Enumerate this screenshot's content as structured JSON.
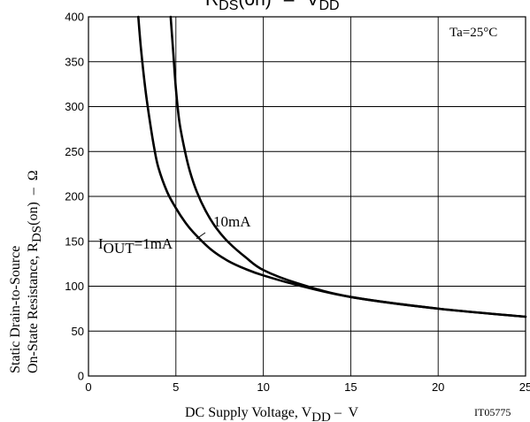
{
  "chart_data": {
    "type": "line",
    "title_main": "R",
    "title_main_sub": "DS",
    "title_main_after": "(on)",
    "title_sep": "–",
    "title_v": "V",
    "title_v_sub": "DD",
    "x_ticks": [
      "0",
      "5",
      "10",
      "15",
      "20",
      "25"
    ],
    "y_ticks": [
      "0",
      "50",
      "100",
      "150",
      "200",
      "250",
      "300",
      "350",
      "400"
    ],
    "xlim": [
      0,
      25
    ],
    "ylim": [
      0,
      400
    ],
    "grid": true,
    "xlabel": {
      "main": "DC Supply Voltage, V",
      "sub": "DD",
      "after": " –  V"
    },
    "ylabel_line1": "Static Drain-to-Source",
    "ylabel_line2": {
      "main": "On-State Resistance, R",
      "sub": "DS",
      "after": "(on)  –  Ω"
    },
    "condition": "Ta=25°C",
    "figure_code": "IT05775",
    "series": [
      {
        "name": "I_OUT=1mA",
        "label_main": "I",
        "label_sub": "OUT",
        "label_after": "=1mA",
        "x": [
          2.85,
          3.0,
          3.25,
          3.5,
          3.75,
          4.0,
          4.5,
          5.0,
          5.5,
          6.0,
          7.0,
          8.0,
          9.0,
          10.0,
          12.0,
          15.0,
          20.0,
          25.0
        ],
        "y": [
          400,
          365,
          320,
          285,
          255,
          232,
          205,
          187,
          172,
          160,
          141,
          128,
          119,
          112,
          101,
          88,
          75,
          66
        ]
      },
      {
        "name": "10mA",
        "label_main": "10mA",
        "x": [
          4.7,
          4.85,
          5.0,
          5.2,
          5.5,
          5.8,
          6.2,
          6.7,
          7.3,
          8.0,
          9.0,
          10.0,
          12.0,
          15.0,
          20.0,
          25.0
        ],
        "y": [
          400,
          360,
          320,
          283,
          252,
          228,
          205,
          184,
          165,
          149,
          132,
          118,
          103,
          88,
          75,
          66
        ]
      }
    ]
  }
}
